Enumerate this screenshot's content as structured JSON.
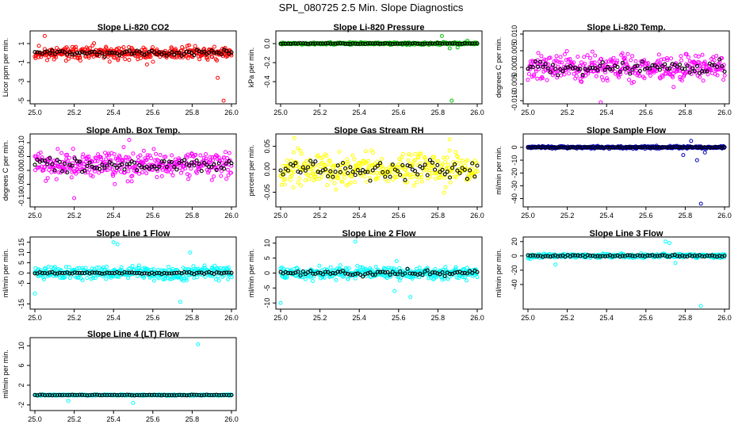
{
  "figure_title": "SPL_080725  2.5 Min. Slope Diagnostics",
  "chart_data": [
    {
      "type": "scatter",
      "title": "Slope Li-820 CO2",
      "ylabel": "Licor ppm per min.",
      "color": "#ff0000",
      "xlim": [
        25.0,
        26.0
      ],
      "ylim": [
        -5,
        2
      ],
      "yticks": [
        "1",
        "-1",
        "-3",
        "-5"
      ],
      "ytick_values": [
        1,
        -1,
        -3,
        -5
      ],
      "xticks": [
        "25.0",
        "25.2",
        "25.4",
        "25.6",
        "25.8",
        "26.0"
      ],
      "center": 0,
      "spread": 0.9,
      "black_spread": 0.35,
      "outliers": [
        [
          25.05,
          1.8
        ],
        [
          25.57,
          -1.2
        ],
        [
          25.93,
          -2.6
        ],
        [
          25.96,
          -5.0
        ],
        [
          25.38,
          -0.9
        ]
      ],
      "seed": 11
    },
    {
      "type": "scatter",
      "title": "Slope Li-820 Pressure",
      "ylabel": "kPa per min.",
      "color": "#00c000",
      "xlim": [
        25.0,
        26.0
      ],
      "ylim": [
        -0.6,
        0.1
      ],
      "yticks": [
        "0.0",
        "-0.2",
        "-0.4"
      ],
      "ytick_values": [
        0.0,
        -0.2,
        -0.4
      ],
      "xticks": [
        "25.0",
        "25.2",
        "25.4",
        "25.6",
        "25.8",
        "26.0"
      ],
      "center": 0,
      "spread": 0.015,
      "black_spread": 0.006,
      "outliers": [
        [
          25.82,
          0.08
        ],
        [
          25.87,
          -0.6
        ],
        [
          25.86,
          -0.05
        ],
        [
          25.9,
          -0.04
        ],
        [
          25.95,
          0.03
        ]
      ],
      "seed": 23
    },
    {
      "type": "scatter",
      "title": "Slope Li-820 Temp.",
      "ylabel": "degrees C per min.",
      "color": "#ff00ff",
      "xlim": [
        25.0,
        26.0
      ],
      "ylim": [
        -0.01,
        0.01
      ],
      "yticks": [
        "0.010",
        "0.005",
        "0.000",
        "-0.005",
        "-0.010"
      ],
      "ytick_values": [
        0.01,
        0.005,
        0.0,
        -0.005,
        -0.01
      ],
      "xticks": [
        "25.0",
        "25.2",
        "25.4",
        "25.6",
        "25.8",
        "26.0"
      ],
      "center": 0,
      "spread": 0.005,
      "black_spread": 0.0025,
      "outliers": [
        [
          25.37,
          -0.0105
        ]
      ],
      "seed": 37
    },
    {
      "type": "scatter",
      "title": "Slope Amb. Box Temp.",
      "ylabel": "degrees C per min.",
      "color": "#ff00ff",
      "xlim": [
        25.0,
        26.0
      ],
      "ylim": [
        -0.12,
        0.12
      ],
      "yticks": [
        "0.10",
        "0.05",
        "0.00",
        "-0.05",
        "-0.10"
      ],
      "ytick_values": [
        0.1,
        0.05,
        0.0,
        -0.05,
        -0.1
      ],
      "xticks": [
        "25.0",
        "25.2",
        "25.4",
        "25.6",
        "25.8",
        "26.0"
      ],
      "center": 0.02,
      "spread": 0.06,
      "black_spread": 0.03,
      "outliers": [
        [
          25.48,
          0.11
        ],
        [
          25.2,
          -0.1
        ]
      ],
      "seed": 41
    },
    {
      "type": "scatter",
      "title": "Slope Gas Stream RH",
      "ylabel": "percent per min.",
      "color": "#ffff00",
      "xlim": [
        25.0,
        26.0
      ],
      "ylim": [
        -0.075,
        0.07
      ],
      "yticks": [
        "0.05",
        "0.00",
        "-0.05"
      ],
      "ytick_values": [
        0.05,
        0.0,
        -0.05
      ],
      "xticks": [
        "25.0",
        "25.2",
        "25.4",
        "25.6",
        "25.8",
        "26.0"
      ],
      "center": 0,
      "spread": 0.045,
      "black_spread": 0.025,
      "outliers": [
        [
          25.07,
          0.068
        ],
        [
          25.86,
          0.065
        ]
      ],
      "seed": 53
    },
    {
      "type": "scatter",
      "title": "Slope Sample Flow",
      "ylabel": "ml/min per min.",
      "color": "#0000c0",
      "xlim": [
        25.0,
        26.0
      ],
      "ylim": [
        -44,
        8
      ],
      "yticks": [
        "0",
        "-10",
        "-20",
        "-30",
        "-40"
      ],
      "ytick_values": [
        0,
        -10,
        -20,
        -30,
        -40
      ],
      "xticks": [
        "25.0",
        "25.2",
        "25.4",
        "25.6",
        "25.8",
        "26.0"
      ],
      "center": 0,
      "spread": 1.2,
      "black_spread": 0.4,
      "outliers": [
        [
          25.88,
          -44
        ],
        [
          25.86,
          -10
        ],
        [
          25.83,
          5
        ],
        [
          25.79,
          -6
        ],
        [
          25.9,
          -4
        ]
      ],
      "seed": 61
    },
    {
      "type": "scatter",
      "title": "Slope Line 1 Flow",
      "ylabel": "ml/min per min.",
      "color": "#00ffff",
      "xlim": [
        25.0,
        26.0
      ],
      "ylim": [
        -16,
        16
      ],
      "yticks": [
        "15",
        "10",
        "5",
        "0",
        "-5",
        "-15"
      ],
      "ytick_values": [
        15,
        10,
        5,
        0,
        -5,
        -15
      ],
      "xticks": [
        "25.0",
        "25.2",
        "25.4",
        "25.6",
        "25.8",
        "26.0"
      ],
      "center": 0,
      "spread": 4.0,
      "black_spread": 0.6,
      "outliers": [
        [
          25.4,
          15
        ],
        [
          25.42,
          14
        ],
        [
          25.74,
          -14
        ],
        [
          25.0,
          -10
        ],
        [
          25.79,
          10
        ]
      ],
      "seed": 71
    },
    {
      "type": "scatter",
      "title": "Slope Line 2 Flow",
      "ylabel": "ml/min per min.",
      "color": "#00ffff",
      "xlim": [
        25.0,
        26.0
      ],
      "ylim": [
        -11,
        11
      ],
      "yticks": [
        "10",
        "5",
        "0",
        "-5",
        "-10"
      ],
      "ytick_values": [
        10,
        5,
        0,
        -5,
        -10
      ],
      "xticks": [
        "25.0",
        "25.2",
        "25.4",
        "25.6",
        "25.8",
        "26.0"
      ],
      "center": 0,
      "spread": 2.5,
      "black_spread": 1.2,
      "outliers": [
        [
          25.38,
          10.5
        ],
        [
          25.0,
          -10
        ],
        [
          25.66,
          -8
        ],
        [
          25.58,
          -6
        ],
        [
          25.59,
          4
        ]
      ],
      "seed": 83
    },
    {
      "type": "scatter",
      "title": "Slope Line 3 Flow",
      "ylabel": "ml/min per min.",
      "color": "#00ffff",
      "xlim": [
        25.0,
        26.0
      ],
      "ylim": [
        -70,
        22
      ],
      "yticks": [
        "20",
        "0",
        "-20",
        "-40"
      ],
      "ytick_values": [
        20,
        0,
        -20,
        -40
      ],
      "xticks": [
        "25.0",
        "25.2",
        "25.4",
        "25.6",
        "25.8",
        "26.0"
      ],
      "center": 0,
      "spread": 3.5,
      "black_spread": 1.5,
      "outliers": [
        [
          25.88,
          -70
        ],
        [
          25.7,
          20
        ],
        [
          25.72,
          18
        ],
        [
          25.14,
          -12
        ],
        [
          25.75,
          -10
        ]
      ],
      "seed": 97
    },
    {
      "type": "scatter",
      "title": "Slope Line 4 (LT) Flow",
      "ylabel": "ml/min per min.",
      "color": "#00ffff",
      "xlim": [
        25.0,
        26.0
      ],
      "ylim": [
        -2.5,
        11
      ],
      "yticks": [
        "10",
        "6",
        "2",
        "-2"
      ],
      "ytick_values": [
        10,
        6,
        2,
        -2
      ],
      "xticks": [
        "25.0",
        "25.2",
        "25.4",
        "25.6",
        "25.8",
        "26.0"
      ],
      "center": 0,
      "spread": 0.15,
      "black_spread": 0.08,
      "outliers": [
        [
          25.83,
          10.3
        ],
        [
          25.17,
          -1.2
        ],
        [
          25.5,
          -1.6
        ]
      ],
      "seed": 101
    }
  ]
}
